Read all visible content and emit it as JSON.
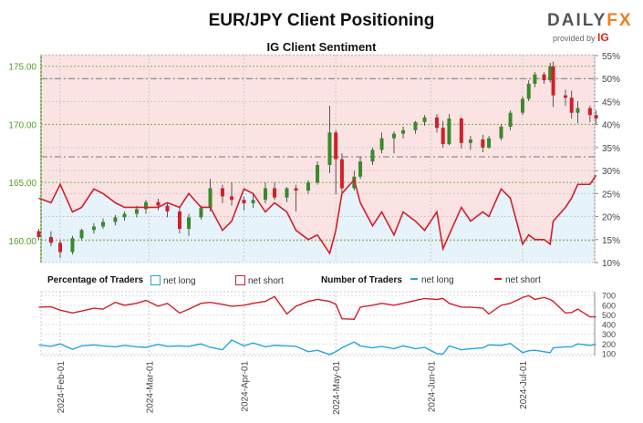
{
  "title": "EUR/JPY Client Positioning",
  "subtitle": "IG Client Sentiment",
  "logo": {
    "brand_a": "DAILY",
    "brand_b": "FX",
    "provided": "provided by",
    "ig": "IG"
  },
  "legend": {
    "pct_title": "Percentage of Traders",
    "pct_long": "net long",
    "pct_short": "net short",
    "num_title": "Number of Traders",
    "num_long": "net long",
    "num_short": "net short"
  },
  "colors": {
    "up": "#3a8a2a",
    "down": "#d0202a",
    "net_long": "#29a3e0",
    "net_short": "#d0202a",
    "long_fill": "#e6f3fb",
    "short_fill": "#fbe3e3"
  },
  "chart_data": [
    {
      "type": "candlestick+line",
      "title": "IG Client Sentiment",
      "y_left": {
        "ticks": [
          "175.00",
          "170.00",
          "165.00",
          "160.00"
        ],
        "range": [
          158.1,
          176
        ]
      },
      "y_right": {
        "ticks": [
          "55%",
          "50%",
          "45%",
          "40%",
          "35%",
          "30%",
          "25%",
          "20%",
          "15%",
          "10%"
        ],
        "range": [
          10,
          55.2
        ]
      },
      "reference_lines_pct": [
        50,
        33
      ],
      "columns": [
        "date",
        "open",
        "high",
        "low",
        "close",
        "net_long_pct",
        "net_long_count",
        "net_short_count"
      ],
      "rows": [
        [
          "2024-01-25",
          160.8,
          161,
          160.0,
          160.3,
          24,
          190,
          580
        ],
        [
          "2024-01-29",
          160.3,
          160.8,
          159.5,
          159.8,
          23,
          175,
          585
        ],
        [
          "2024-02-01",
          159.8,
          160,
          158.5,
          159.0,
          27,
          200,
          550
        ],
        [
          "2024-02-05",
          159.0,
          160.4,
          158.8,
          160.2,
          21,
          145,
          520
        ],
        [
          "2024-02-08",
          160.2,
          161.0,
          160.0,
          160.9,
          22,
          180,
          540
        ],
        [
          "2024-02-12",
          160.9,
          161.5,
          160.6,
          161.2,
          26,
          190,
          570
        ],
        [
          "2024-02-15",
          161.2,
          161.9,
          161.0,
          161.6,
          25,
          180,
          560
        ],
        [
          "2024-02-19",
          161.6,
          162.2,
          161.3,
          162.0,
          23,
          170,
          630
        ],
        [
          "2024-02-22",
          162.0,
          162.5,
          161.7,
          162.3,
          22,
          185,
          600
        ],
        [
          "2024-02-26",
          162.3,
          163.0,
          162.0,
          162.7,
          22,
          170,
          620
        ],
        [
          "2024-02-29",
          162.7,
          163.5,
          162.3,
          163.3,
          22,
          165,
          650
        ],
        [
          "2024-03-04",
          163.3,
          163.6,
          162.6,
          163.0,
          22,
          195,
          590
        ],
        [
          "2024-03-07",
          163.0,
          163.3,
          162.0,
          162.5,
          23,
          175,
          620
        ],
        [
          "2024-03-11",
          162.5,
          162.8,
          160.6,
          161.0,
          22,
          180,
          520
        ],
        [
          "2024-03-14",
          161.0,
          162.3,
          160.4,
          162.0,
          25,
          175,
          560
        ],
        [
          "2024-03-18",
          162.0,
          163.0,
          161.8,
          162.8,
          22,
          200,
          620
        ],
        [
          "2024-03-21",
          162.8,
          165.3,
          162.5,
          164.5,
          22,
          165,
          630
        ],
        [
          "2024-03-25",
          164.5,
          164.8,
          163.2,
          163.8,
          17,
          140,
          610
        ],
        [
          "2024-03-28",
          163.8,
          165.0,
          163.0,
          163.5,
          19,
          240,
          590
        ],
        [
          "2024-04-01",
          163.5,
          163.8,
          162.6,
          163.2,
          26,
          180,
          600
        ],
        [
          "2024-04-04",
          163.2,
          164.0,
          162.8,
          163.5,
          25,
          210,
          620
        ],
        [
          "2024-04-08",
          163.5,
          165.0,
          163.2,
          164.5,
          21,
          170,
          640
        ],
        [
          "2024-04-11",
          164.5,
          165.0,
          163.5,
          163.7,
          23,
          185,
          690
        ],
        [
          "2024-04-15",
          163.7,
          164.6,
          163.3,
          164.5,
          21,
          180,
          510
        ],
        [
          "2024-04-18",
          164.5,
          164.8,
          162.5,
          164.3,
          17,
          175,
          590
        ],
        [
          "2024-04-22",
          164.3,
          165.2,
          164.0,
          165.0,
          15,
          120,
          640
        ],
        [
          "2024-04-25",
          165.0,
          166.8,
          164.8,
          166.5,
          16,
          135,
          660
        ],
        [
          "2024-04-29",
          166.5,
          171.6,
          165.8,
          169.3,
          12,
          90,
          640
        ],
        [
          "2024-05-01",
          169.3,
          169.5,
          164.0,
          167.0,
          17,
          120,
          610
        ],
        [
          "2024-05-03",
          167.0,
          167.5,
          164.0,
          164.5,
          25,
          160,
          460
        ],
        [
          "2024-05-07",
          164.5,
          166.0,
          164.3,
          165.5,
          28,
          220,
          455
        ],
        [
          "2024-05-09",
          165.5,
          167.2,
          165.3,
          166.8,
          23,
          180,
          580
        ],
        [
          "2024-05-13",
          166.8,
          168.0,
          166.5,
          167.8,
          18,
          160,
          600
        ],
        [
          "2024-05-16",
          167.8,
          169.3,
          167.5,
          168.8,
          21,
          175,
          620
        ],
        [
          "2024-05-20",
          168.8,
          169.4,
          167.5,
          169.2,
          16,
          150,
          600
        ],
        [
          "2024-05-23",
          169.2,
          169.8,
          168.8,
          169.5,
          21,
          180,
          620
        ],
        [
          "2024-05-27",
          169.5,
          170.3,
          169.2,
          170.2,
          19,
          150,
          650
        ],
        [
          "2024-05-30",
          170.2,
          170.8,
          169.9,
          170.6,
          17,
          165,
          670
        ],
        [
          "2024-06-03",
          170.6,
          170.9,
          169.3,
          169.7,
          21,
          100,
          660
        ],
        [
          "2024-06-05",
          169.7,
          170.3,
          168.0,
          168.3,
          13,
          95,
          670
        ],
        [
          "2024-06-07",
          168.3,
          170.9,
          168.2,
          170.5,
          16,
          180,
          620
        ],
        [
          "2024-06-11",
          170.5,
          170.6,
          167.9,
          168.4,
          22,
          140,
          580
        ],
        [
          "2024-06-14",
          168.4,
          169.0,
          167.8,
          168.7,
          19,
          150,
          580
        ],
        [
          "2024-06-18",
          168.7,
          169.1,
          167.6,
          168.0,
          21,
          160,
          570
        ],
        [
          "2024-06-20",
          168.0,
          169.0,
          167.9,
          168.8,
          20,
          190,
          510
        ],
        [
          "2024-06-24",
          168.8,
          170.0,
          168.6,
          169.8,
          26,
          185,
          600
        ],
        [
          "2024-06-27",
          169.8,
          171.2,
          169.5,
          171.0,
          24,
          205,
          620
        ],
        [
          "2024-07-01",
          171.0,
          172.4,
          170.8,
          172.2,
          14,
          110,
          680
        ],
        [
          "2024-07-03",
          172.2,
          173.8,
          172.0,
          173.5,
          16,
          130,
          700
        ],
        [
          "2024-07-05",
          173.5,
          174.5,
          173.2,
          174.3,
          15,
          135,
          660
        ],
        [
          "2024-07-08",
          174.3,
          174.5,
          173.5,
          173.8,
          15,
          120,
          680
        ],
        [
          "2024-07-10",
          173.8,
          175.3,
          173.6,
          175.0,
          14,
          110,
          660
        ],
        [
          "2024-07-11",
          175.0,
          175.4,
          171.5,
          172.5,
          19,
          160,
          640
        ],
        [
          "2024-07-15",
          172.5,
          173.0,
          171.6,
          172.3,
          22,
          170,
          520
        ],
        [
          "2024-07-17",
          172.3,
          172.9,
          170.5,
          171.0,
          24,
          170,
          525
        ],
        [
          "2024-07-19",
          171.0,
          172.0,
          170.1,
          171.4,
          27,
          200,
          560
        ],
        [
          "2024-07-23",
          171.4,
          171.6,
          170.2,
          170.8,
          27,
          185,
          480
        ],
        [
          "2024-07-25",
          170.8,
          171.2,
          170.0,
          170.5,
          29,
          195,
          480
        ]
      ]
    },
    {
      "type": "line",
      "title": "Number of Traders",
      "y_right": {
        "ticks": [
          "700",
          "600",
          "500",
          "400",
          "300",
          "200",
          "100"
        ],
        "range": [
          80,
          740
        ]
      },
      "x_ticks": [
        "2024-Feb-01",
        "2024-Mar-01",
        "2024-Apr-01",
        "2024-May-01",
        "2024-Jun-01",
        "2024-Jul-01"
      ],
      "x_tick_dates": [
        "2024-02-01",
        "2024-03-01",
        "2024-04-01",
        "2024-05-01",
        "2024-06-01",
        "2024-07-01"
      ]
    }
  ]
}
